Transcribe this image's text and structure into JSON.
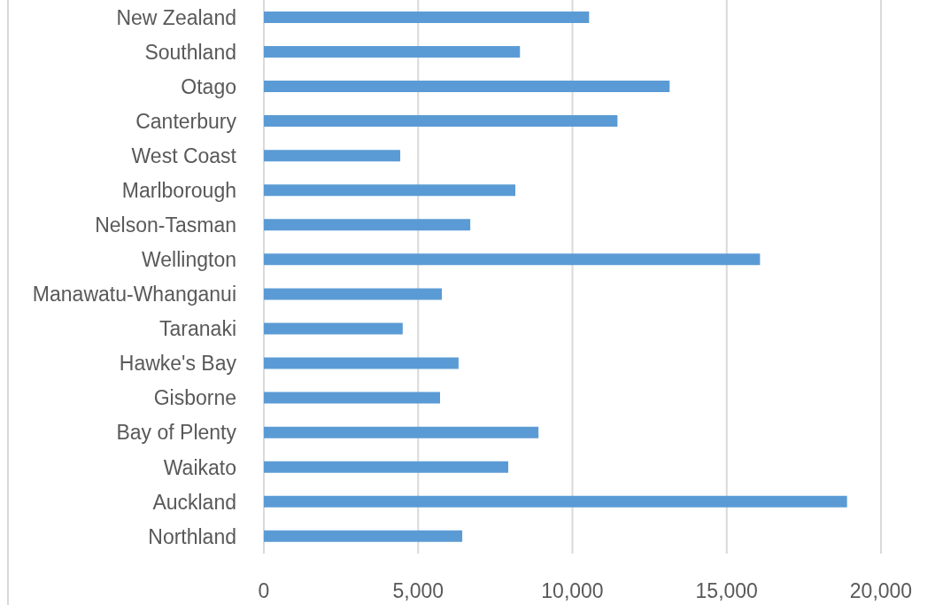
{
  "chart_data": {
    "type": "bar",
    "orientation": "horizontal",
    "categories": [
      "New Zealand",
      "Southland",
      "Otago",
      "Canterbury",
      "West Coast",
      "Marlborough",
      "Nelson-Tasman",
      "Wellington",
      "Manawatu-Whanganui",
      "Taranaki",
      "Hawke's Bay",
      "Gisborne",
      "Bay of Plenty",
      "Waikato",
      "Auckland",
      "Northland"
    ],
    "values": [
      10540,
      8300,
      13150,
      11460,
      4420,
      8150,
      6690,
      16080,
      5770,
      4500,
      6310,
      5710,
      8900,
      7920,
      18900,
      6430
    ],
    "color": "#5b9bd5",
    "xlim": [
      0,
      20000
    ],
    "xticks": [
      0,
      {
        "value": 5000,
        "label": "5,000"
      },
      {
        "value": 10000,
        "label": "10,000"
      },
      {
        "value": 15000,
        "label": "15,000"
      },
      {
        "value": 20000,
        "label": "20,000"
      }
    ],
    "grid": "x"
  }
}
